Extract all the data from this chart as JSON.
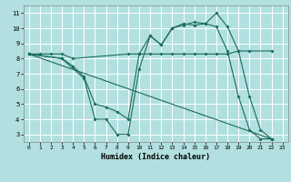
{
  "title": "",
  "xlabel": "Humidex (Indice chaleur)",
  "bg_color": "#b2e0e0",
  "grid_color": "#ffffff",
  "line_color": "#1a6b5a",
  "xlim": [
    -0.5,
    23.5
  ],
  "ylim": [
    2.5,
    11.5
  ],
  "xticks": [
    0,
    1,
    2,
    3,
    4,
    5,
    6,
    7,
    8,
    9,
    10,
    11,
    12,
    13,
    14,
    15,
    16,
    17,
    18,
    19,
    20,
    21,
    22,
    23
  ],
  "yticks": [
    3,
    4,
    5,
    6,
    7,
    8,
    9,
    10,
    11
  ],
  "line1_x": [
    0,
    1,
    2,
    3,
    4,
    9,
    10,
    11,
    12,
    13,
    14,
    15,
    16,
    17,
    18,
    19,
    20,
    22
  ],
  "line1_y": [
    8.3,
    8.3,
    8.3,
    8.3,
    8.0,
    8.3,
    8.3,
    8.3,
    8.3,
    8.3,
    8.3,
    8.3,
    8.3,
    8.3,
    8.3,
    8.5,
    8.5,
    8.5
  ],
  "line2_x": [
    0,
    3,
    5,
    6,
    7,
    8,
    9,
    10,
    11,
    12,
    13,
    14,
    15,
    16,
    17,
    18,
    19,
    20,
    21,
    22
  ],
  "line2_y": [
    8.3,
    8.0,
    6.7,
    4.0,
    4.0,
    3.0,
    3.0,
    7.3,
    9.5,
    8.9,
    10.0,
    10.2,
    10.4,
    10.3,
    11.0,
    10.1,
    8.5,
    5.5,
    3.3,
    2.7
  ],
  "line3_x": [
    0,
    3,
    4,
    5,
    6,
    7,
    8,
    9,
    10,
    11,
    12,
    13,
    14,
    15,
    16,
    17,
    18,
    19,
    20,
    21,
    22
  ],
  "line3_y": [
    8.3,
    8.0,
    7.5,
    6.8,
    5.0,
    4.8,
    4.5,
    4.0,
    8.3,
    9.5,
    8.9,
    10.0,
    10.3,
    10.2,
    10.3,
    10.1,
    8.5,
    5.5,
    3.3,
    2.7,
    2.7
  ],
  "line4_x": [
    0,
    22
  ],
  "line4_y": [
    8.3,
    2.7
  ]
}
